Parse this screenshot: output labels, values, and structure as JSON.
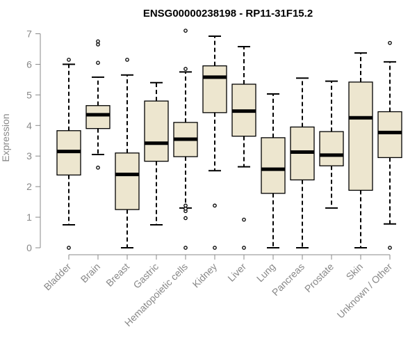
{
  "chart_data": {
    "type": "boxplot",
    "title": "ENSG00000238198 - RP11-31F15.2",
    "xlabel": "",
    "ylabel": "Expression",
    "ylim": [
      0,
      7
    ],
    "yticks": [
      0,
      1,
      2,
      3,
      4,
      5,
      6,
      7
    ],
    "colors": {
      "box_fill": "#ede6cf",
      "axis": "#888888",
      "median": "#000000"
    },
    "categories": [
      "Bladder",
      "Brain",
      "Breast",
      "Gastric",
      "Hematopoietic cells",
      "Kidney",
      "Liver",
      "Lung",
      "Pancreas",
      "Prostate",
      "Skin",
      "Unknown / Other"
    ],
    "boxes": [
      {
        "name": "Bladder",
        "whisker_low": 0.75,
        "q1": 2.38,
        "median": 3.15,
        "q3": 3.83,
        "whisker_high": 6.0,
        "outliers": [
          0.0,
          6.15
        ]
      },
      {
        "name": "Brain",
        "whisker_low": 3.05,
        "q1": 3.9,
        "median": 4.35,
        "q3": 4.65,
        "whisker_high": 5.58,
        "outliers": [
          2.62,
          6.05,
          6.65,
          6.75
        ]
      },
      {
        "name": "Breast",
        "whisker_low": 0.0,
        "q1": 1.25,
        "median": 2.4,
        "q3": 3.1,
        "whisker_high": 5.65,
        "outliers": [
          6.15
        ]
      },
      {
        "name": "Gastric",
        "whisker_low": 0.75,
        "q1": 2.83,
        "median": 3.42,
        "q3": 4.8,
        "whisker_high": 5.4,
        "outliers": []
      },
      {
        "name": "Hematopoietic cells",
        "whisker_low": 1.3,
        "q1": 2.98,
        "median": 3.55,
        "q3": 4.1,
        "whisker_high": 5.75,
        "outliers": [
          0.0,
          0.97,
          1.2,
          1.28,
          1.38,
          5.85,
          7.1
        ]
      },
      {
        "name": "Kidney",
        "whisker_low": 2.52,
        "q1": 4.42,
        "median": 5.58,
        "q3": 5.95,
        "whisker_high": 6.92,
        "outliers": [
          0.0,
          1.38
        ]
      },
      {
        "name": "Liver",
        "whisker_low": 2.65,
        "q1": 3.65,
        "median": 4.47,
        "q3": 5.35,
        "whisker_high": 6.58,
        "outliers": [
          0.0,
          0.92
        ]
      },
      {
        "name": "Lung",
        "whisker_low": 0.0,
        "q1": 1.78,
        "median": 2.57,
        "q3": 3.6,
        "whisker_high": 5.03,
        "outliers": []
      },
      {
        "name": "Pancreas",
        "whisker_low": 0.0,
        "q1": 2.22,
        "median": 3.13,
        "q3": 3.95,
        "whisker_high": 5.55,
        "outliers": []
      },
      {
        "name": "Prostate",
        "whisker_low": 1.3,
        "q1": 2.68,
        "median": 3.03,
        "q3": 3.8,
        "whisker_high": 5.45,
        "outliers": []
      },
      {
        "name": "Skin",
        "whisker_low": 0.0,
        "q1": 1.88,
        "median": 4.25,
        "q3": 5.42,
        "whisker_high": 6.37,
        "outliers": []
      },
      {
        "name": "Unknown / Other",
        "whisker_low": 0.78,
        "q1": 2.95,
        "median": 3.77,
        "q3": 4.45,
        "whisker_high": 6.08,
        "outliers": [
          0.0,
          6.7
        ]
      }
    ]
  }
}
